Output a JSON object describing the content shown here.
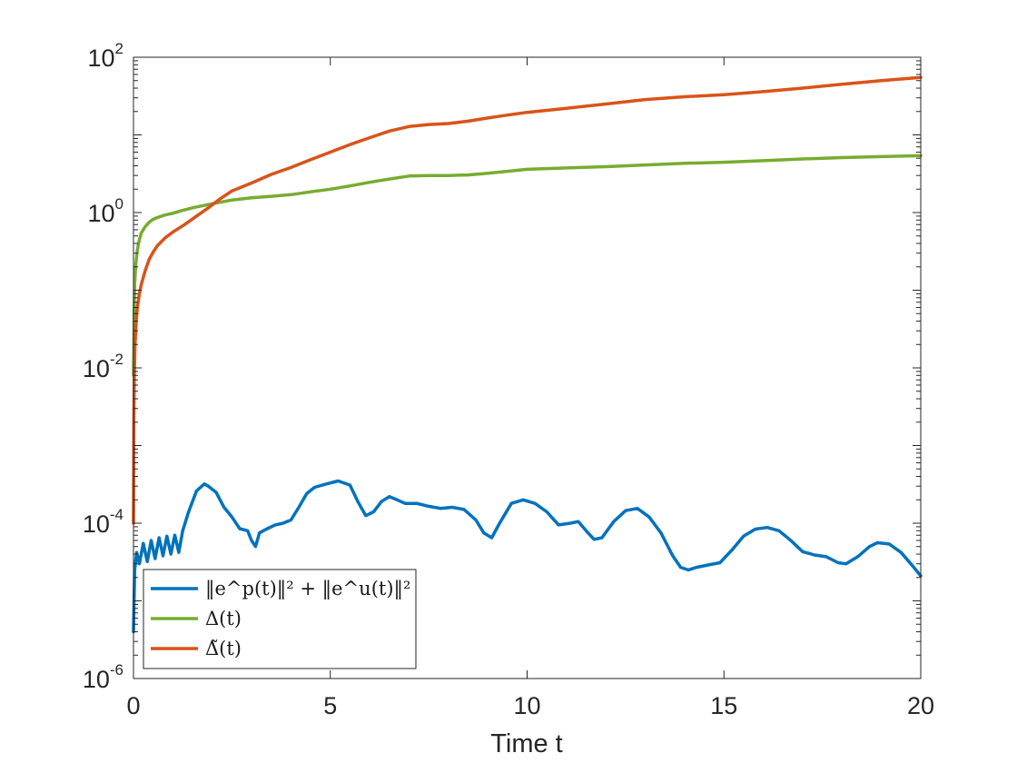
{
  "chart_data": {
    "type": "line",
    "xlabel": "Time t",
    "ylabel": "",
    "title": "",
    "xlim": [
      0,
      20
    ],
    "ylim": [
      1e-06,
      100
    ],
    "yscale": "log",
    "grid": false,
    "legend_position": "bottom-left",
    "x_ticks": [
      "0",
      "5",
      "10",
      "15",
      "20"
    ],
    "y_ticks": [
      {
        "base": "10",
        "exp": "-6"
      },
      {
        "base": "10",
        "exp": "-4"
      },
      {
        "base": "10",
        "exp": "-2"
      },
      {
        "base": "10",
        "exp": "0"
      },
      {
        "base": "10",
        "exp": "2"
      }
    ],
    "series": [
      {
        "name": "‖e^p(t)‖² + ‖e^u(t)‖²",
        "color": "#0072BD",
        "x": [
          0,
          0.03,
          0.08,
          0.15,
          0.25,
          0.35,
          0.45,
          0.55,
          0.65,
          0.75,
          0.85,
          0.95,
          1.05,
          1.15,
          1.25,
          1.4,
          1.6,
          1.8,
          1.9,
          2.1,
          2.3,
          2.5,
          2.7,
          2.9,
          3.0,
          3.1,
          3.2,
          3.4,
          3.6,
          3.8,
          4.0,
          4.2,
          4.4,
          4.6,
          4.9,
          5.2,
          5.5,
          5.7,
          5.9,
          6.1,
          6.3,
          6.5,
          6.7,
          6.9,
          7.2,
          7.5,
          7.8,
          8.1,
          8.4,
          8.7,
          8.9,
          9.1,
          9.3,
          9.6,
          9.9,
          10.2,
          10.5,
          10.8,
          11.1,
          11.3,
          11.5,
          11.7,
          11.9,
          12.2,
          12.5,
          12.8,
          13.1,
          13.4,
          13.7,
          13.9,
          14.1,
          14.3,
          14.6,
          14.9,
          15.2,
          15.5,
          15.8,
          16.1,
          16.4,
          16.7,
          17.0,
          17.3,
          17.6,
          17.9,
          18.1,
          18.4,
          18.7,
          18.9,
          19.2,
          19.5,
          19.8,
          20.0
        ],
        "values": [
          4e-06,
          2.5e-05,
          4.2e-05,
          3e-05,
          5.5e-05,
          3.2e-05,
          6e-05,
          3.5e-05,
          6.5e-05,
          3.8e-05,
          6.8e-05,
          4e-05,
          7e-05,
          4.2e-05,
          8e-05,
          0.00014,
          0.00026,
          0.00032,
          0.0003,
          0.00025,
          0.00016,
          0.00012,
          8.5e-05,
          8e-05,
          6e-05,
          5e-05,
          7.5e-05,
          8.5e-05,
          9.5e-05,
          0.0001,
          0.00011,
          0.00016,
          0.00024,
          0.00029,
          0.00032,
          0.00035,
          0.00031,
          0.00019,
          0.000125,
          0.00014,
          0.00019,
          0.00022,
          0.0002,
          0.00018,
          0.00018,
          0.000165,
          0.000155,
          0.00016,
          0.00015,
          0.00011,
          7.5e-05,
          6.5e-05,
          0.0001,
          0.00018,
          0.0002,
          0.00018,
          0.00014,
          9.5e-05,
          0.0001,
          0.000105,
          8e-05,
          6.2e-05,
          6.5e-05,
          0.000105,
          0.000145,
          0.000155,
          0.00012,
          7.5e-05,
          3.8e-05,
          2.7e-05,
          2.5e-05,
          2.7e-05,
          2.9e-05,
          3.1e-05,
          4.5e-05,
          6.8e-05,
          8.4e-05,
          8.8e-05,
          8e-05,
          6e-05,
          4.3e-05,
          3.9e-05,
          3.7e-05,
          3.1e-05,
          3e-05,
          3.7e-05,
          5e-05,
          5.6e-05,
          5.4e-05,
          4.2e-05,
          2.8e-05,
          2.1e-05
        ]
      },
      {
        "name": "Δ(t)",
        "color": "#77AC30",
        "x": [
          0,
          0.015,
          0.03,
          0.06,
          0.1,
          0.15,
          0.2,
          0.3,
          0.4,
          0.5,
          0.6,
          0.8,
          1.0,
          1.2,
          1.5,
          2.0,
          2.5,
          3.0,
          3.5,
          4.0,
          4.5,
          5.0,
          5.5,
          6.0,
          6.5,
          7.0,
          7.5,
          8.0,
          8.5,
          9.0,
          9.5,
          10.0,
          11.0,
          12.0,
          13.0,
          14.0,
          15.0,
          16.0,
          17.0,
          18.0,
          19.0,
          20.0
        ],
        "values": [
          0.008,
          0.05,
          0.12,
          0.22,
          0.33,
          0.45,
          0.55,
          0.66,
          0.75,
          0.82,
          0.86,
          0.93,
          0.98,
          1.05,
          1.15,
          1.3,
          1.45,
          1.55,
          1.62,
          1.7,
          1.85,
          2.0,
          2.2,
          2.45,
          2.7,
          2.95,
          3.0,
          3.0,
          3.05,
          3.2,
          3.4,
          3.6,
          3.75,
          3.9,
          4.1,
          4.3,
          4.45,
          4.65,
          4.9,
          5.1,
          5.25,
          5.4
        ]
      },
      {
        "name": "Δ̃(t)",
        "color": "#D95319",
        "x": [
          0,
          0.01,
          0.02,
          0.04,
          0.07,
          0.1,
          0.15,
          0.2,
          0.3,
          0.4,
          0.5,
          0.6,
          0.8,
          1.0,
          1.3,
          1.6,
          1.9,
          2.2,
          2.5,
          3.0,
          3.5,
          4.0,
          4.5,
          5.0,
          5.5,
          6.0,
          6.5,
          7.0,
          7.5,
          8.0,
          8.5,
          9.0,
          9.5,
          10.0,
          11.0,
          12.0,
          13.0,
          14.0,
          15.0,
          16.0,
          17.0,
          18.0,
          19.0,
          20.0
        ],
        "values": [
          0.0001,
          0.002,
          0.008,
          0.02,
          0.04,
          0.06,
          0.09,
          0.12,
          0.18,
          0.25,
          0.31,
          0.37,
          0.47,
          0.56,
          0.7,
          0.9,
          1.15,
          1.5,
          1.9,
          2.4,
          3.1,
          3.8,
          4.8,
          6.0,
          7.5,
          9.2,
          11.2,
          12.8,
          13.6,
          14.0,
          15.0,
          16.5,
          18.0,
          19.5,
          22.0,
          25.0,
          28.5,
          31.0,
          33.0,
          36.0,
          40.0,
          45.0,
          50.0,
          55.0
        ]
      }
    ]
  }
}
